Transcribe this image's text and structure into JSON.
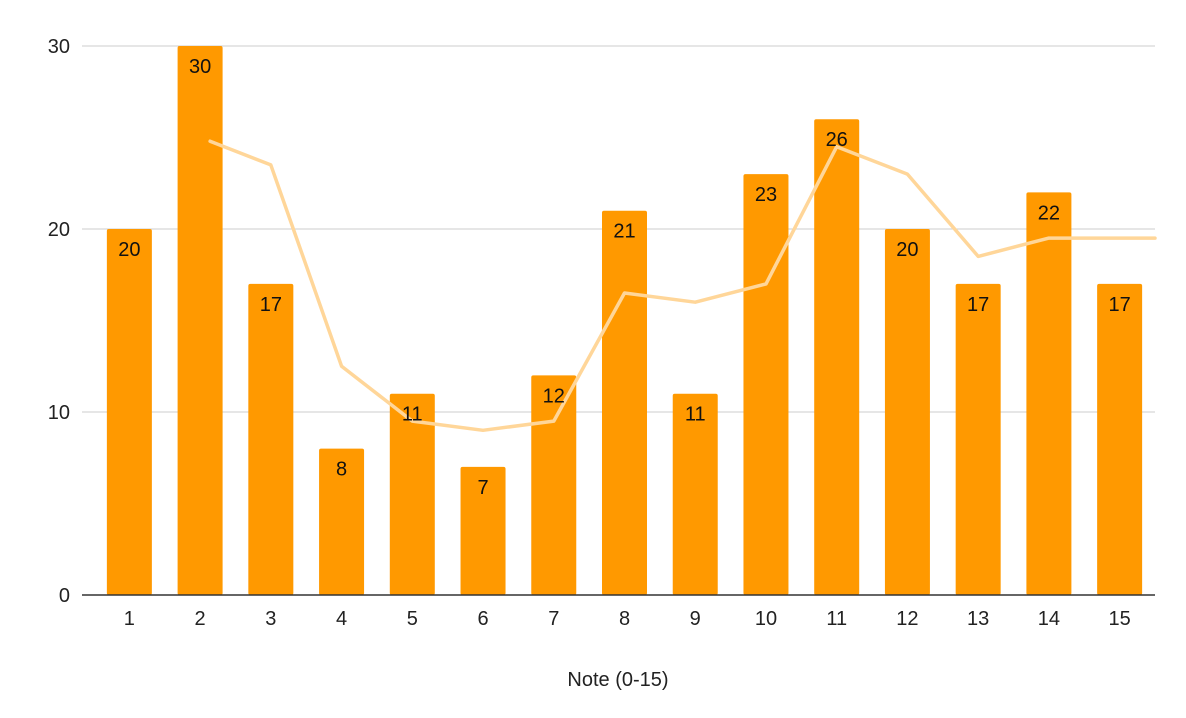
{
  "chart_data": {
    "type": "bar",
    "categories": [
      "1",
      "2",
      "3",
      "4",
      "5",
      "6",
      "7",
      "8",
      "9",
      "10",
      "11",
      "12",
      "13",
      "14",
      "15"
    ],
    "series": [
      {
        "type": "bar",
        "values": [
          20,
          30,
          17,
          8,
          11,
          7,
          12,
          21,
          11,
          23,
          26,
          20,
          17,
          22,
          17
        ]
      },
      {
        "type": "line",
        "values": [
          null,
          24.8,
          23.5,
          12.5,
          9.5,
          9,
          9.5,
          16.5,
          16,
          17,
          24.5,
          23,
          18.5,
          19.5,
          19.5
        ]
      }
    ],
    "xlabel": "Note (0-15)",
    "ylabel": "",
    "ylim": [
      0,
      30
    ],
    "yticks": [
      "0",
      "10",
      "20",
      "30"
    ],
    "grid": true,
    "legend": "none",
    "data_labels": true
  },
  "colors": {
    "bar": "#ff9900",
    "line": "#ffd699",
    "grid": "#cccccc",
    "axis": "#333333"
  }
}
